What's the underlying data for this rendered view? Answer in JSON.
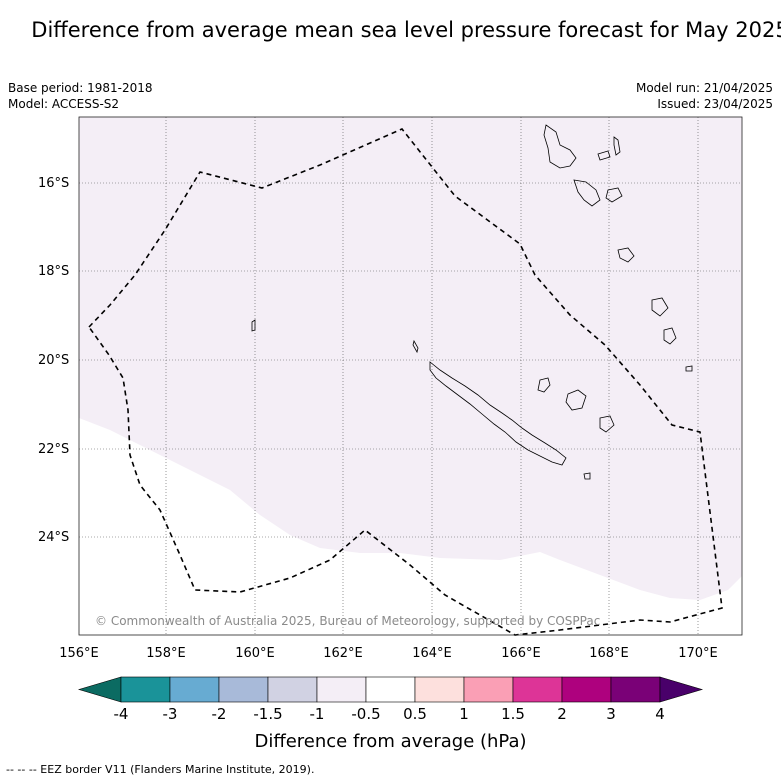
{
  "title": "Difference from average mean sea level pressure forecast for May 2025",
  "base_period": "Base period: 1981-2018",
  "model": "Model: ACCESS-S2",
  "model_run": "Model run: 21/04/2025",
  "issued": "Issued: 23/04/2025",
  "copyright": "© Commonwealth of Australia 2025, Bureau of Meteorology, supported by COSPPac",
  "lat_labels": [
    "16°S",
    "18°S",
    "20°S",
    "22°S",
    "24°S"
  ],
  "lon_labels": [
    "156°E",
    "158°E",
    "160°E",
    "162°E",
    "164°E",
    "166°E",
    "168°E",
    "170°E"
  ],
  "colorbar": {
    "title": "Difference from average (hPa)",
    "ticks": [
      "-4",
      "-3",
      "-2",
      "-1.5",
      "-1",
      "-0.5",
      "0.5",
      "1",
      "1.5",
      "2",
      "3",
      "4"
    ],
    "colors": [
      "#1a9399",
      "#67abd2",
      "#a8bad9",
      "#d1d2e3",
      "#f4eef6",
      "#ffffff",
      "#fde0dd",
      "#fa9fb5",
      "#dd3497",
      "#ae017e",
      "#7a0177"
    ],
    "under_color": "#0b6b62",
    "over_color": "#49006a"
  },
  "map": {
    "shaded_value_range": "-1 to -0.5",
    "shade_color": "#f4eef6",
    "eez_color": "#000000"
  },
  "footnote": "-- -- -- EEZ border V11 (Flanders Marine Institute, 2019)."
}
